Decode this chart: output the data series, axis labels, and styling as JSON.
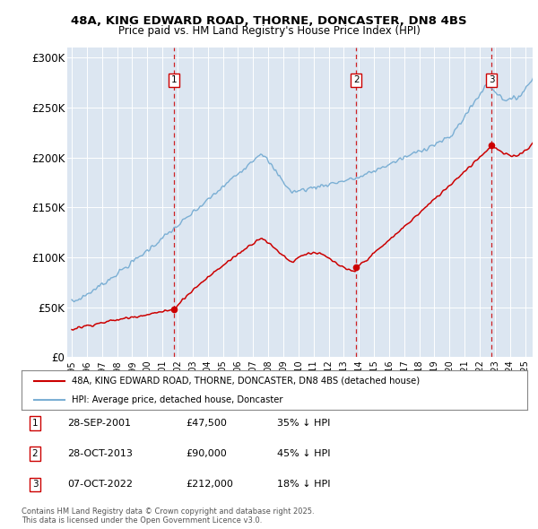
{
  "title": "48A, KING EDWARD ROAD, THORNE, DONCASTER, DN8 4BS",
  "subtitle": "Price paid vs. HM Land Registry's House Price Index (HPI)",
  "ylim": [
    0,
    310000
  ],
  "yticks": [
    0,
    50000,
    100000,
    150000,
    200000,
    250000,
    300000
  ],
  "ytick_labels": [
    "£0",
    "£50K",
    "£100K",
    "£150K",
    "£200K",
    "£250K",
    "£300K"
  ],
  "xlim_start": 1994.7,
  "xlim_end": 2025.5,
  "bg_color": "#dce6f1",
  "sale_dates": [
    2001.74,
    2013.83,
    2022.77
  ],
  "sale_prices": [
    47500,
    90000,
    212000
  ],
  "sale_labels": [
    "1",
    "2",
    "3"
  ],
  "legend_house": "48A, KING EDWARD ROAD, THORNE, DONCASTER, DN8 4BS (detached house)",
  "legend_hpi": "HPI: Average price, detached house, Doncaster",
  "annotations": [
    {
      "label": "1",
      "date": "28-SEP-2001",
      "price": "£47,500",
      "hpi": "35% ↓ HPI"
    },
    {
      "label": "2",
      "date": "28-OCT-2013",
      "price": "£90,000",
      "hpi": "45% ↓ HPI"
    },
    {
      "label": "3",
      "date": "07-OCT-2022",
      "price": "£212,000",
      "hpi": "18% ↓ HPI"
    }
  ],
  "copyright_text": "Contains HM Land Registry data © Crown copyright and database right 2025.\nThis data is licensed under the Open Government Licence v3.0.",
  "house_color": "#cc0000",
  "hpi_color": "#7bafd4",
  "dashed_color": "#cc0000"
}
